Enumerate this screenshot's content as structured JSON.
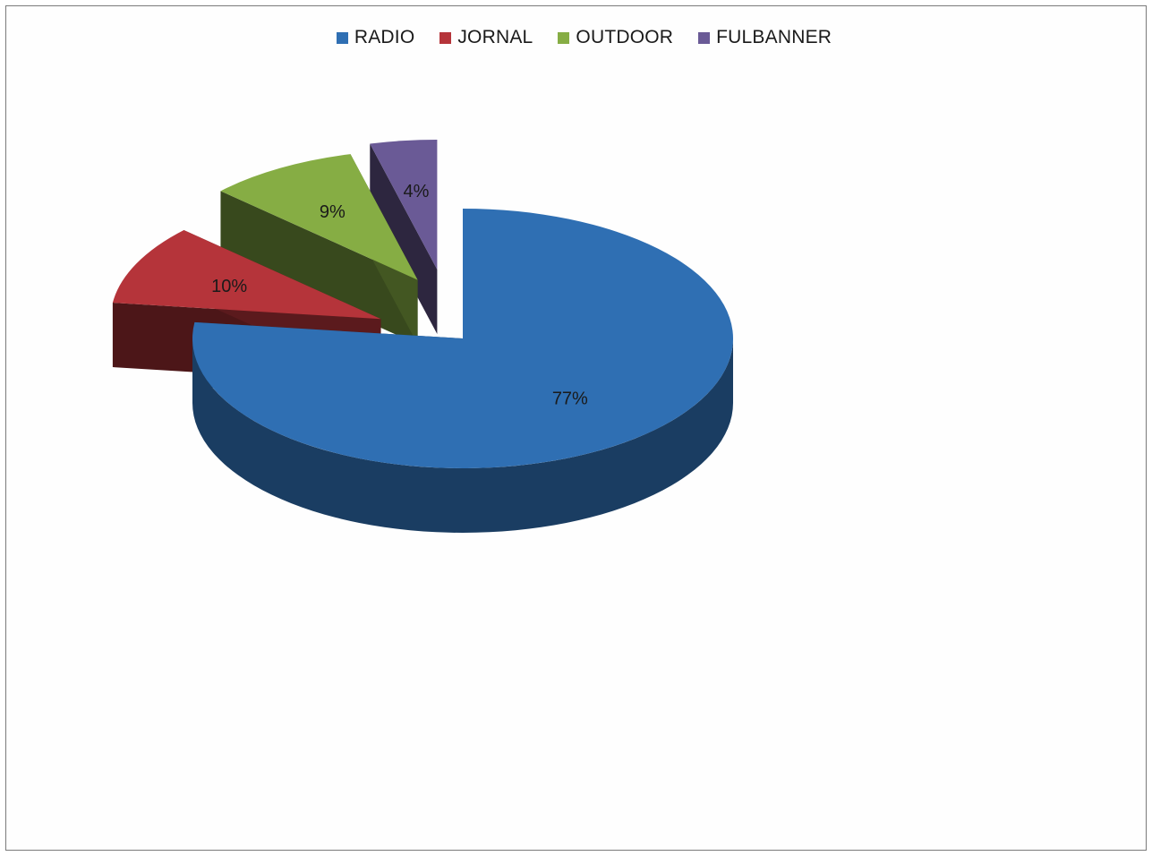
{
  "chart_data": {
    "type": "pie",
    "style": "3d-exploded",
    "title": "",
    "legend_position": "top",
    "categories": [
      "RADIO",
      "JORNAL",
      "OUTDOOR",
      "FULBANNER"
    ],
    "values": [
      77,
      10,
      9,
      4
    ],
    "labels": [
      "77%",
      "10%",
      "9%",
      "4%"
    ],
    "colors": [
      "#2f6fb3",
      "#b5343a",
      "#86ad44",
      "#6a5a96"
    ]
  }
}
